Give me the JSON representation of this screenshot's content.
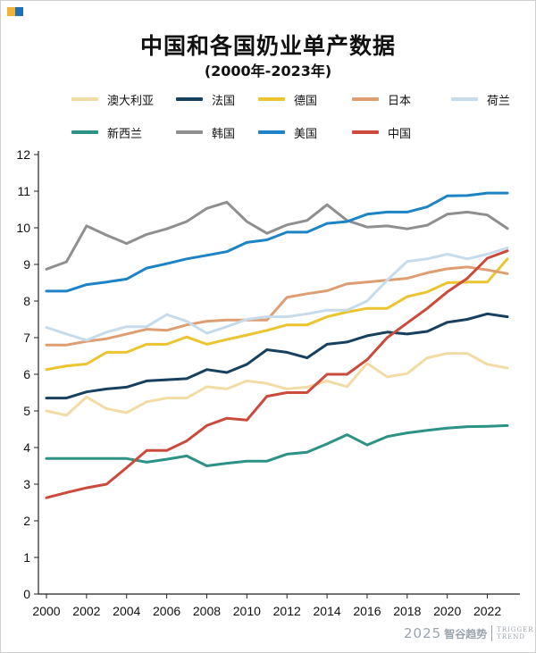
{
  "colors": {
    "axis": "#222222",
    "corner_mark": [
      "#f2b233",
      "#1f6fb5"
    ]
  },
  "footer": {
    "year": "2025",
    "brand": "智谷趋势",
    "en_line1": "TRIGGER",
    "en_line2": "TREND"
  },
  "chart_data": {
    "type": "line",
    "title": "中国和各国奶业单产数据",
    "subtitle": "(2000年-2023年)",
    "xlabel": "",
    "ylabel": "",
    "xlim": [
      2000,
      2023
    ],
    "ylim": [
      0,
      12
    ],
    "xticks": [
      2000,
      2002,
      2004,
      2006,
      2008,
      2010,
      2012,
      2014,
      2016,
      2018,
      2020,
      2022
    ],
    "yticks": [
      0,
      1,
      2,
      3,
      4,
      5,
      6,
      7,
      8,
      9,
      10,
      11,
      12
    ],
    "grid": false,
    "legend_position": "top",
    "x": [
      2000,
      2001,
      2002,
      2003,
      2004,
      2005,
      2006,
      2007,
      2008,
      2009,
      2010,
      2011,
      2012,
      2013,
      2014,
      2015,
      2016,
      2017,
      2018,
      2019,
      2020,
      2021,
      2022,
      2023
    ],
    "series": [
      {
        "name": "澳大利亚",
        "color": "#f1dca6",
        "values": [
          5.0,
          4.88,
          5.38,
          5.06,
          4.95,
          5.25,
          5.35,
          5.35,
          5.66,
          5.6,
          5.82,
          5.75,
          5.6,
          5.65,
          5.82,
          5.66,
          6.3,
          5.93,
          6.02,
          6.45,
          6.57,
          6.57,
          6.27,
          6.17
        ]
      },
      {
        "name": "法国",
        "color": "#17405e",
        "values": [
          5.35,
          5.35,
          5.52,
          5.6,
          5.65,
          5.82,
          5.85,
          5.88,
          6.13,
          6.05,
          6.27,
          6.67,
          6.6,
          6.45,
          6.82,
          6.88,
          7.05,
          7.15,
          7.1,
          7.17,
          7.42,
          7.5,
          7.65,
          7.57
        ]
      },
      {
        "name": "德国",
        "color": "#ecc42f",
        "values": [
          6.13,
          6.23,
          6.28,
          6.6,
          6.6,
          6.82,
          6.82,
          7.02,
          6.82,
          6.95,
          7.07,
          7.2,
          7.35,
          7.35,
          7.57,
          7.7,
          7.8,
          7.8,
          8.12,
          8.25,
          8.5,
          8.52,
          8.52,
          9.15
        ]
      },
      {
        "name": "日本",
        "color": "#de9e72",
        "values": [
          6.8,
          6.8,
          6.9,
          6.97,
          7.1,
          7.23,
          7.2,
          7.35,
          7.45,
          7.48,
          7.48,
          7.48,
          8.1,
          8.2,
          8.28,
          8.47,
          8.52,
          8.57,
          8.62,
          8.77,
          8.88,
          8.93,
          8.85,
          8.75
        ]
      },
      {
        "name": "荷兰",
        "color": "#c6dbeb",
        "values": [
          7.28,
          7.1,
          6.93,
          7.15,
          7.3,
          7.3,
          7.63,
          7.45,
          7.12,
          7.3,
          7.5,
          7.57,
          7.57,
          7.65,
          7.75,
          7.75,
          8.0,
          8.57,
          9.08,
          9.15,
          9.28,
          9.15,
          9.28,
          9.45
        ]
      },
      {
        "name": "新西兰",
        "color": "#2c9286",
        "values": [
          3.7,
          3.7,
          3.7,
          3.7,
          3.7,
          3.6,
          3.68,
          3.77,
          3.5,
          3.57,
          3.63,
          3.63,
          3.82,
          3.87,
          4.1,
          4.35,
          4.07,
          4.3,
          4.4,
          4.47,
          4.53,
          4.57,
          4.58,
          4.6
        ]
      },
      {
        "name": "韩国",
        "color": "#8f8f8f",
        "values": [
          8.87,
          9.07,
          10.05,
          9.8,
          9.57,
          9.82,
          9.97,
          10.17,
          10.53,
          10.7,
          10.17,
          9.85,
          10.08,
          10.2,
          10.63,
          10.2,
          10.02,
          10.05,
          9.97,
          10.07,
          10.37,
          10.43,
          10.35,
          9.98
        ]
      },
      {
        "name": "美国",
        "color": "#1c84c5",
        "values": [
          8.27,
          8.27,
          8.45,
          8.52,
          8.6,
          8.9,
          9.02,
          9.15,
          9.25,
          9.35,
          9.6,
          9.67,
          9.88,
          9.88,
          10.12,
          10.17,
          10.37,
          10.43,
          10.43,
          10.57,
          10.87,
          10.88,
          10.95,
          10.95
        ]
      },
      {
        "name": "中国",
        "color": "#cc4a3c",
        "values": [
          2.63,
          2.77,
          2.9,
          3.0,
          3.45,
          3.92,
          3.92,
          4.18,
          4.6,
          4.8,
          4.75,
          5.4,
          5.5,
          5.5,
          6.0,
          6.0,
          6.4,
          7.0,
          7.4,
          7.8,
          8.25,
          8.62,
          9.17,
          9.37
        ]
      }
    ]
  }
}
